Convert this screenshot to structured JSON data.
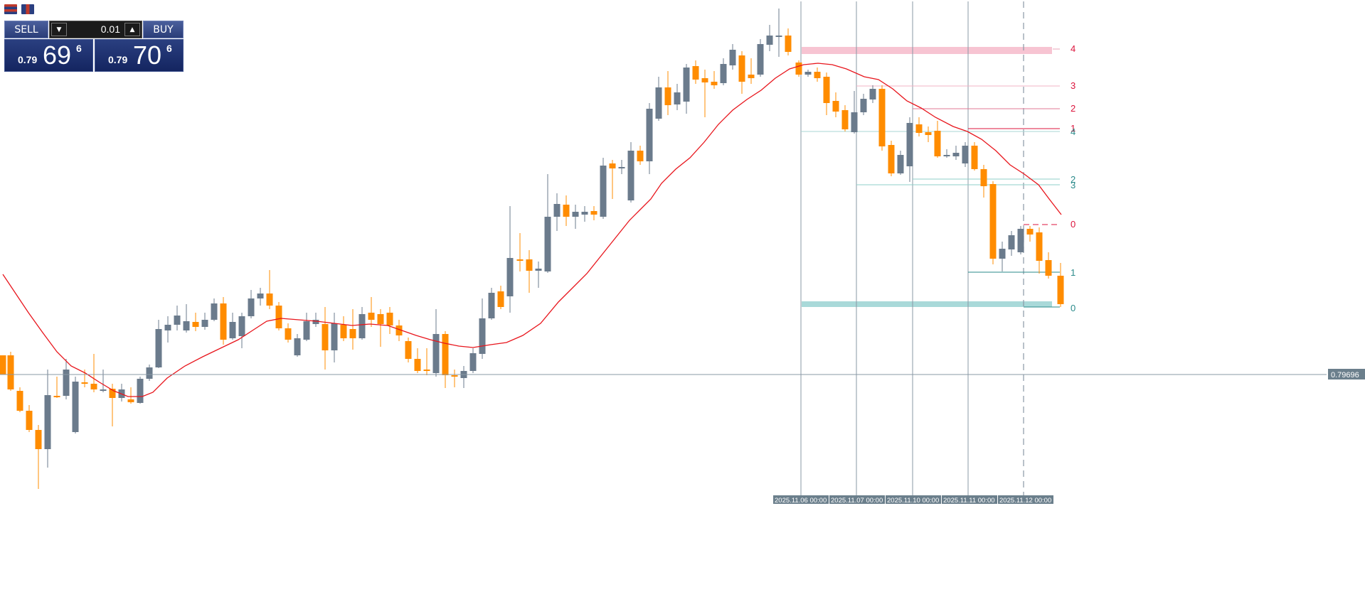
{
  "toolbar": {
    "icons": [
      "one-click-trading-icon",
      "depth-of-market-icon"
    ]
  },
  "trade_panel": {
    "sell_label": "SELL",
    "buy_label": "BUY",
    "lot_value": "0.01",
    "bid": {
      "prefix": "0.79",
      "big": "69",
      "sup": "6"
    },
    "ask": {
      "prefix": "0.79",
      "big": "70",
      "sup": "6"
    }
  },
  "price_axis": {
    "current_price_label": "0.79696",
    "current_price_color": "#6b7f8c"
  },
  "time_axis": {
    "labels": [
      "2025.11.06 00:00",
      "2025.11.07 00:00",
      "2025.11.10 00:00",
      "2025.11.11 00:00",
      "2025.11.12 00:00"
    ]
  },
  "level_labels": {
    "pink": [
      "4",
      "3",
      "2",
      "1",
      "0"
    ],
    "teal": [
      "4",
      "2",
      "3",
      "1",
      "0"
    ]
  },
  "colors": {
    "bull_candle": "#6b7b8c",
    "bear_candle": "#ff8c00",
    "moving_average": "#e8151c",
    "pink_level": "#dc143c",
    "teal_level": "#2a8a8a",
    "background": "#ffffff",
    "panel_blue": "#1e3370"
  }
}
